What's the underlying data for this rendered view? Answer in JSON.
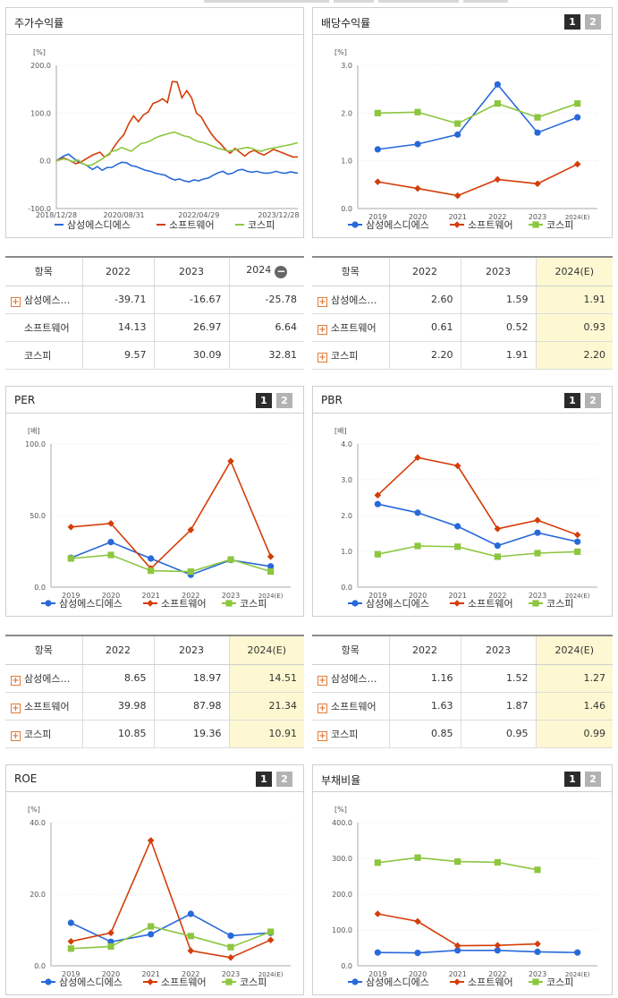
{
  "colors": {
    "samsung": "#2869d9",
    "software": "#d43d08",
    "kospi": "#8dc63f"
  },
  "legend": [
    "삼성에스디에스",
    "소프트웨어",
    "코스피"
  ],
  "panels": {
    "stock": {
      "title": "주가수익률",
      "unit": "[%]",
      "ylabels": [
        "200.0",
        "100.0",
        "0.0",
        "-100.0"
      ],
      "xlabels": [
        "2018/12/28",
        "2020/08/31",
        "2022/04/29",
        "2023/12/28"
      ]
    },
    "dividend": {
      "title": "배당수익률",
      "unit": "[%]",
      "ylabels": [
        "3.0",
        "2.0",
        "1.0",
        "0.0"
      ],
      "xlabels": [
        "2019",
        "2020",
        "2021",
        "2022",
        "2023",
        "2024(E)"
      ],
      "tab1": "1",
      "tab2": "2"
    },
    "per": {
      "title": "PER",
      "unit": "[배]",
      "ylabels": [
        "100.0",
        "50.0",
        "0.0"
      ],
      "xlabels": [
        "2019",
        "2020",
        "2021",
        "2022",
        "2023",
        "2024(E)"
      ],
      "tab1": "1",
      "tab2": "2"
    },
    "pbr": {
      "title": "PBR",
      "unit": "[배]",
      "ylabels": [
        "4.0",
        "3.0",
        "2.0",
        "1.0",
        "0.0"
      ],
      "xlabels": [
        "2019",
        "2020",
        "2021",
        "2022",
        "2023",
        "2024(E)"
      ],
      "tab1": "1",
      "tab2": "2"
    },
    "roe": {
      "title": "ROE",
      "unit": "[%]",
      "ylabels": [
        "40.0",
        "20.0",
        "0.0"
      ],
      "xlabels": [
        "2019",
        "2020",
        "2021",
        "2022",
        "2023",
        "2024(E)"
      ],
      "tab1": "1",
      "tab2": "2"
    },
    "debt": {
      "title": "부채비율",
      "unit": "[%]",
      "ylabels": [
        "400.0",
        "300.0",
        "200.0",
        "100.0",
        "0.0"
      ],
      "xlabels": [
        "2019",
        "2020",
        "2021",
        "2022",
        "2023",
        "2024(E)"
      ],
      "tab1": "1",
      "tab2": "2"
    }
  },
  "tables": {
    "stock": {
      "headers": [
        "항목",
        "2022",
        "2023",
        "2024"
      ],
      "rows": [
        {
          "name": "삼성에스…",
          "values": [
            "-39.71",
            "-16.67",
            "-25.78"
          ]
        },
        {
          "name": "소프트웨어",
          "values": [
            "14.13",
            "26.97",
            "6.64"
          ]
        },
        {
          "name": "코스피",
          "values": [
            "9.57",
            "30.09",
            "32.81"
          ]
        }
      ]
    },
    "dividend": {
      "headers": [
        "항목",
        "2022",
        "2023",
        "2024(E)"
      ],
      "rows": [
        {
          "name": "삼성에스…",
          "values": [
            "2.60",
            "1.59",
            "1.91"
          ]
        },
        {
          "name": "소프트웨어",
          "values": [
            "0.61",
            "0.52",
            "0.93"
          ]
        },
        {
          "name": "코스피",
          "values": [
            "2.20",
            "1.91",
            "2.20"
          ]
        }
      ]
    },
    "per": {
      "headers": [
        "항목",
        "2022",
        "2023",
        "2024(E)"
      ],
      "rows": [
        {
          "name": "삼성에스…",
          "values": [
            "8.65",
            "18.97",
            "14.51"
          ]
        },
        {
          "name": "소프트웨어",
          "values": [
            "39.98",
            "87.98",
            "21.34"
          ]
        },
        {
          "name": "코스피",
          "values": [
            "10.85",
            "19.36",
            "10.91"
          ]
        }
      ]
    },
    "pbr": {
      "headers": [
        "항목",
        "2022",
        "2023",
        "2024(E)"
      ],
      "rows": [
        {
          "name": "삼성에스…",
          "values": [
            "1.16",
            "1.52",
            "1.27"
          ]
        },
        {
          "name": "소프트웨어",
          "values": [
            "1.63",
            "1.87",
            "1.46"
          ]
        },
        {
          "name": "코스피",
          "values": [
            "0.85",
            "0.95",
            "0.99"
          ]
        }
      ]
    }
  },
  "chart_data": [
    {
      "type": "line",
      "id": "stock",
      "title": "주가수익률",
      "ylabel": "[%]",
      "ylim": [
        -100,
        200
      ],
      "x": [
        "2018/12/28",
        "2020/08/31",
        "2022/04/29",
        "2023/12/28"
      ],
      "series": [
        {
          "name": "삼성에스디에스",
          "points": [
            [
              0,
              0
            ],
            [
              3,
              10
            ],
            [
              5,
              14
            ],
            [
              7,
              6
            ],
            [
              9,
              -2
            ],
            [
              12,
              -8
            ],
            [
              15,
              -18
            ],
            [
              17,
              -12
            ],
            [
              19,
              -20
            ],
            [
              21,
              -14
            ],
            [
              23,
              -14
            ],
            [
              25,
              -8
            ],
            [
              27,
              -3
            ],
            [
              29,
              -4
            ],
            [
              31,
              -10
            ],
            [
              33,
              -12
            ],
            [
              35,
              -16
            ],
            [
              37,
              -20
            ],
            [
              39,
              -22
            ],
            [
              41,
              -26
            ],
            [
              43,
              -28
            ],
            [
              45,
              -30
            ],
            [
              47,
              -36
            ],
            [
              49,
              -40
            ],
            [
              51,
              -38
            ],
            [
              53,
              -42
            ],
            [
              55,
              -44
            ],
            [
              57,
              -40
            ],
            [
              59,
              -42
            ],
            [
              61,
              -38
            ],
            [
              63,
              -36
            ],
            [
              65,
              -30
            ],
            [
              67,
              -25
            ],
            [
              69,
              -22
            ],
            [
              71,
              -28
            ],
            [
              73,
              -26
            ],
            [
              75,
              -20
            ],
            [
              77,
              -18
            ],
            [
              79,
              -22
            ],
            [
              81,
              -24
            ],
            [
              83,
              -22
            ],
            [
              85,
              -25
            ],
            [
              87,
              -26
            ],
            [
              89,
              -25
            ],
            [
              91,
              -22
            ],
            [
              93,
              -25
            ],
            [
              95,
              -26
            ],
            [
              97,
              -23
            ],
            [
              100,
              -26
            ]
          ]
        },
        {
          "name": "소프트웨어",
          "points": [
            [
              0,
              0
            ],
            [
              3,
              6
            ],
            [
              5,
              2
            ],
            [
              8,
              -6
            ],
            [
              10,
              -3
            ],
            [
              13,
              6
            ],
            [
              15,
              12
            ],
            [
              18,
              18
            ],
            [
              20,
              8
            ],
            [
              22,
              14
            ],
            [
              24,
              30
            ],
            [
              26,
              44
            ],
            [
              28,
              55
            ],
            [
              30,
              78
            ],
            [
              32,
              94
            ],
            [
              34,
              82
            ],
            [
              36,
              96
            ],
            [
              38,
              102
            ],
            [
              40,
              120
            ],
            [
              42,
              124
            ],
            [
              44,
              130
            ],
            [
              46,
              122
            ],
            [
              48,
              166
            ],
            [
              50,
              165
            ],
            [
              52,
              132
            ],
            [
              54,
              147
            ],
            [
              56,
              132
            ],
            [
              58,
              100
            ],
            [
              60,
              92
            ],
            [
              62,
              74
            ],
            [
              64,
              58
            ],
            [
              66,
              45
            ],
            [
              68,
              36
            ],
            [
              70,
              24
            ],
            [
              72,
              16
            ],
            [
              74,
              26
            ],
            [
              76,
              18
            ],
            [
              78,
              10
            ],
            [
              80,
              18
            ],
            [
              82,
              22
            ],
            [
              84,
              16
            ],
            [
              86,
              12
            ],
            [
              88,
              18
            ],
            [
              90,
              24
            ],
            [
              92,
              20
            ],
            [
              94,
              16
            ],
            [
              96,
              12
            ],
            [
              98,
              8
            ],
            [
              100,
              8
            ]
          ]
        },
        {
          "name": "코스피",
          "points": [
            [
              0,
              0
            ],
            [
              3,
              4
            ],
            [
              5,
              2
            ],
            [
              7,
              -2
            ],
            [
              9,
              2
            ],
            [
              11,
              -6
            ],
            [
              13,
              -10
            ],
            [
              15,
              -8
            ],
            [
              17,
              -2
            ],
            [
              19,
              4
            ],
            [
              21,
              12
            ],
            [
              23,
              20
            ],
            [
              25,
              22
            ],
            [
              27,
              28
            ],
            [
              29,
              24
            ],
            [
              31,
              20
            ],
            [
              33,
              28
            ],
            [
              35,
              36
            ],
            [
              37,
              38
            ],
            [
              39,
              42
            ],
            [
              41,
              48
            ],
            [
              43,
              52
            ],
            [
              45,
              55
            ],
            [
              47,
              58
            ],
            [
              49,
              60
            ],
            [
              51,
              56
            ],
            [
              53,
              52
            ],
            [
              55,
              50
            ],
            [
              57,
              44
            ],
            [
              59,
              40
            ],
            [
              61,
              38
            ],
            [
              63,
              34
            ],
            [
              65,
              30
            ],
            [
              67,
              26
            ],
            [
              69,
              24
            ],
            [
              71,
              20
            ],
            [
              73,
              22
            ],
            [
              75,
              24
            ],
            [
              77,
              26
            ],
            [
              79,
              28
            ],
            [
              81,
              26
            ],
            [
              83,
              22
            ],
            [
              85,
              20
            ],
            [
              87,
              24
            ],
            [
              89,
              26
            ],
            [
              91,
              28
            ],
            [
              93,
              30
            ],
            [
              95,
              32
            ],
            [
              97,
              34
            ],
            [
              100,
              38
            ]
          ]
        }
      ]
    },
    {
      "type": "line",
      "id": "dividend",
      "categories": [
        "2019",
        "2020",
        "2021",
        "2022",
        "2023",
        "2024(E)"
      ],
      "ylim": [
        0,
        3
      ],
      "series": [
        {
          "name": "삼성에스디에스",
          "values": [
            1.24,
            1.35,
            1.55,
            2.6,
            1.59,
            1.91
          ]
        },
        {
          "name": "소프트웨어",
          "values": [
            0.56,
            0.42,
            0.27,
            0.61,
            0.52,
            0.93
          ]
        },
        {
          "name": "코스피",
          "values": [
            2.0,
            2.02,
            1.78,
            2.2,
            1.91,
            2.2
          ]
        }
      ]
    },
    {
      "type": "line",
      "id": "per",
      "categories": [
        "2019",
        "2020",
        "2021",
        "2022",
        "2023",
        "2024(E)"
      ],
      "ylim": [
        0,
        100
      ],
      "series": [
        {
          "name": "삼성에스디에스",
          "values": [
            20.5,
            31.5,
            20.0,
            8.65,
            18.97,
            14.51
          ]
        },
        {
          "name": "소프트웨어",
          "values": [
            42.0,
            44.5,
            13.0,
            39.98,
            87.98,
            21.34
          ]
        },
        {
          "name": "코스피",
          "values": [
            20.0,
            22.5,
            11.5,
            10.85,
            19.36,
            10.91
          ]
        }
      ]
    },
    {
      "type": "line",
      "id": "pbr",
      "categories": [
        "2019",
        "2020",
        "2021",
        "2022",
        "2023",
        "2024(E)"
      ],
      "ylim": [
        0,
        4
      ],
      "series": [
        {
          "name": "삼성에스디에스",
          "values": [
            2.32,
            2.08,
            1.7,
            1.16,
            1.52,
            1.27
          ]
        },
        {
          "name": "소프트웨어",
          "values": [
            2.57,
            3.62,
            3.39,
            1.63,
            1.87,
            1.46
          ]
        },
        {
          "name": "코스피",
          "values": [
            0.92,
            1.15,
            1.13,
            0.85,
            0.95,
            0.99
          ]
        }
      ]
    },
    {
      "type": "line",
      "id": "roe",
      "categories": [
        "2019",
        "2020",
        "2021",
        "2022",
        "2023",
        "2024(E)"
      ],
      "ylim": [
        0,
        40
      ],
      "series": [
        {
          "name": "삼성에스디에스",
          "values": [
            12.0,
            6.7,
            8.8,
            14.5,
            8.4,
            9.2
          ]
        },
        {
          "name": "소프트웨어",
          "values": [
            6.8,
            9.2,
            35.0,
            4.2,
            2.3,
            7.2
          ]
        },
        {
          "name": "코스피",
          "values": [
            4.8,
            5.4,
            11.0,
            8.3,
            5.2,
            9.5
          ]
        }
      ]
    },
    {
      "type": "line",
      "id": "debt",
      "categories": [
        "2019",
        "2020",
        "2021",
        "2022",
        "2023",
        "2024(E)"
      ],
      "ylim": [
        0,
        400
      ],
      "series": [
        {
          "name": "삼성에스디에스",
          "values": [
            37,
            36,
            43,
            43,
            39,
            37
          ]
        },
        {
          "name": "소프트웨어",
          "values": [
            145,
            124,
            56,
            57,
            61,
            null
          ]
        },
        {
          "name": "코스피",
          "values": [
            288,
            302,
            291,
            289,
            268,
            null
          ]
        }
      ]
    }
  ]
}
